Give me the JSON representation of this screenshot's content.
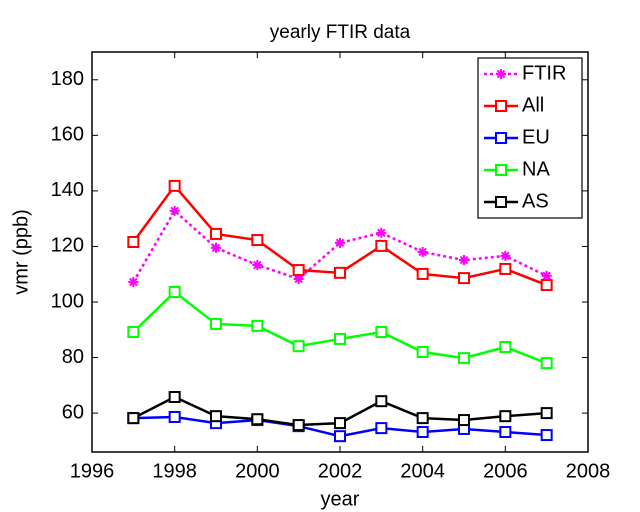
{
  "chart_data": {
    "type": "line",
    "title": "yearly FTIR data",
    "x_label": "year",
    "y_label": "vmr (ppb)",
    "x": [
      1997,
      1998,
      1999,
      2000,
      2001,
      2002,
      2003,
      2004,
      2005,
      2006,
      2007
    ],
    "series": [
      {
        "name": "FTIR",
        "color": "#ff00ff",
        "linestyle": "dotted",
        "marker": "asterisk",
        "values": [
          107.2,
          132.8,
          119.5,
          113.3,
          108.3,
          121.3,
          124.9,
          118.0,
          115.1,
          116.6,
          109.4
        ]
      },
      {
        "name": "All",
        "color": "#ff0000",
        "linestyle": "solid",
        "marker": "square",
        "values": [
          121.6,
          141.8,
          124.5,
          122.3,
          111.5,
          110.5,
          120.2,
          110.1,
          108.6,
          111.9,
          106.1
        ]
      },
      {
        "name": "EU",
        "color": "#0000ff",
        "linestyle": "solid",
        "marker": "square",
        "values": [
          58.2,
          58.6,
          56.4,
          57.5,
          55.3,
          51.7,
          54.6,
          53.2,
          54.3,
          53.2,
          52.1
        ]
      },
      {
        "name": "NA",
        "color": "#00ff00",
        "linestyle": "solid",
        "marker": "square",
        "values": [
          89.2,
          103.6,
          92.1,
          91.4,
          84.1,
          86.7,
          89.2,
          82.0,
          79.8,
          83.8,
          78.0
        ]
      },
      {
        "name": "AS",
        "color": "#000000",
        "linestyle": "solid",
        "marker": "square",
        "values": [
          58.2,
          65.8,
          58.9,
          57.8,
          55.7,
          56.4,
          64.3,
          58.2,
          57.5,
          58.9,
          60.0
        ]
      }
    ],
    "xlim": [
      1996,
      2008
    ],
    "xticks": [
      1996,
      1998,
      2000,
      2002,
      2004,
      2006,
      2008
    ],
    "ylim": [
      46,
      190
    ],
    "yticks": [
      60,
      80,
      100,
      120,
      140,
      160,
      180
    ],
    "grid": false,
    "legend": "upper right"
  }
}
